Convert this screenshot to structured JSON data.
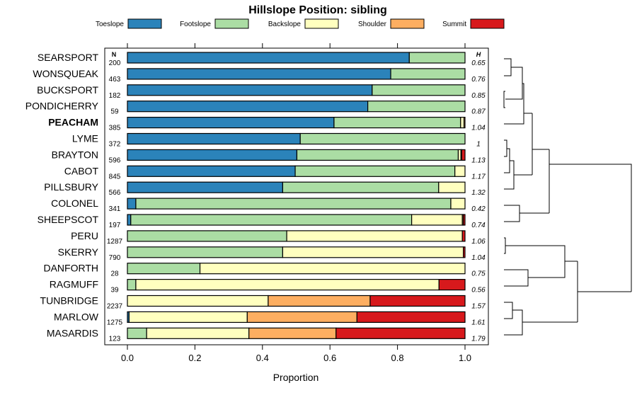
{
  "chart_data": {
    "type": "bar",
    "orientation": "horizontal",
    "stacked": true,
    "title": "Hillslope Position: sibling",
    "xlabel": "Proportion",
    "xlim": [
      0,
      1
    ],
    "x_ticks": [
      "0.0",
      "0.2",
      "0.4",
      "0.6",
      "0.8",
      "1.0"
    ],
    "n_header": "N",
    "h_header": "H",
    "highlight": "PEACHAM",
    "legend": [
      {
        "name": "Toeslope",
        "color": "#2b83ba"
      },
      {
        "name": "Footslope",
        "color": "#abdda4"
      },
      {
        "name": "Backslope",
        "color": "#ffffbf"
      },
      {
        "name": "Shoulder",
        "color": "#fdae61"
      },
      {
        "name": "Summit",
        "color": "#d7191c"
      }
    ],
    "categories": [
      "SEARSPORT",
      "WONSQUEAK",
      "BUCKSPORT",
      "PONDICHERRY",
      "PEACHAM",
      "LYME",
      "BRAYTON",
      "CABOT",
      "PILLSBURY",
      "COLONEL",
      "SHEEPSCOT",
      "PERU",
      "SKERRY",
      "DANFORTH",
      "RAGMUFF",
      "TUNBRIDGE",
      "MARLOW",
      "MASARDIS"
    ],
    "n": [
      "200",
      "463",
      "182",
      "59",
      "385",
      "372",
      "596",
      "845",
      "566",
      "341",
      "197",
      "1287",
      "790",
      "28",
      "39",
      "2237",
      "1275",
      "123"
    ],
    "h": [
      "0.65",
      "0.76",
      "0.85",
      "0.87",
      "1.04",
      "1",
      "1.13",
      "1.17",
      "1.32",
      "0.42",
      "0.74",
      "1.06",
      "1.04",
      "0.75",
      "0.56",
      "1.57",
      "1.61",
      "1.79"
    ],
    "series": [
      {
        "name": "Toeslope",
        "values": [
          0.835,
          0.78,
          0.725,
          0.712,
          0.612,
          0.512,
          0.502,
          0.497,
          0.46,
          0.025,
          0.01,
          0.0,
          0.0,
          0.0,
          0.0,
          0.0,
          0.005,
          0.0
        ]
      },
      {
        "name": "Footslope",
        "values": [
          0.165,
          0.22,
          0.275,
          0.288,
          0.375,
          0.488,
          0.478,
          0.473,
          0.462,
          0.933,
          0.832,
          0.472,
          0.46,
          0.215,
          0.025,
          0.0,
          0.0,
          0.057
        ]
      },
      {
        "name": "Backslope",
        "values": [
          0.0,
          0.0,
          0.0,
          0.0,
          0.01,
          0.0,
          0.008,
          0.03,
          0.078,
          0.042,
          0.15,
          0.52,
          0.535,
          0.785,
          0.898,
          0.417,
          0.35,
          0.303
        ]
      },
      {
        "name": "Shoulder",
        "values": [
          0.0,
          0.0,
          0.0,
          0.0,
          0.003,
          0.0,
          0.002,
          0.0,
          0.0,
          0.0,
          0.003,
          0.0,
          0.0,
          0.0,
          0.0,
          0.302,
          0.325,
          0.258
        ]
      },
      {
        "name": "Summit",
        "values": [
          0.0,
          0.0,
          0.0,
          0.0,
          0.0,
          0.0,
          0.01,
          0.0,
          0.0,
          0.0,
          0.005,
          0.008,
          0.005,
          0.0,
          0.077,
          0.281,
          0.32,
          0.382
        ]
      }
    ]
  }
}
